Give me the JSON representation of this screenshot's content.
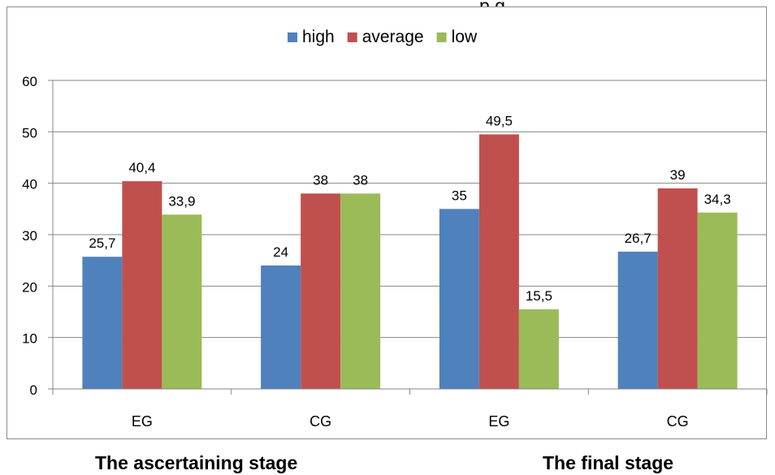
{
  "chart_data": {
    "type": "bar",
    "categories": [
      "EG",
      "CG",
      "EG",
      "CG"
    ],
    "series": [
      {
        "name": "high",
        "values": [
          25.7,
          24,
          35,
          26.7
        ],
        "color": "#4f81bd"
      },
      {
        "name": "average",
        "values": [
          40.4,
          38,
          49.5,
          39
        ],
        "color": "#c0504d"
      },
      {
        "name": "low",
        "values": [
          33.9,
          38,
          15.5,
          34.3
        ],
        "color": "#9bbb59"
      }
    ],
    "data_labels": [
      [
        "25,7",
        "24",
        "35",
        "26,7"
      ],
      [
        "40,4",
        "38",
        "49,5",
        "39"
      ],
      [
        "33,9",
        "38",
        "15,5",
        "34,3"
      ]
    ],
    "yticks": [
      0,
      10,
      20,
      30,
      40,
      50,
      60
    ],
    "ylim": [
      0,
      60
    ],
    "grid": true,
    "legend_position": "top"
  },
  "stage_labels": [
    "The ascertaining stage",
    "The final stage"
  ],
  "top_text": "p g"
}
